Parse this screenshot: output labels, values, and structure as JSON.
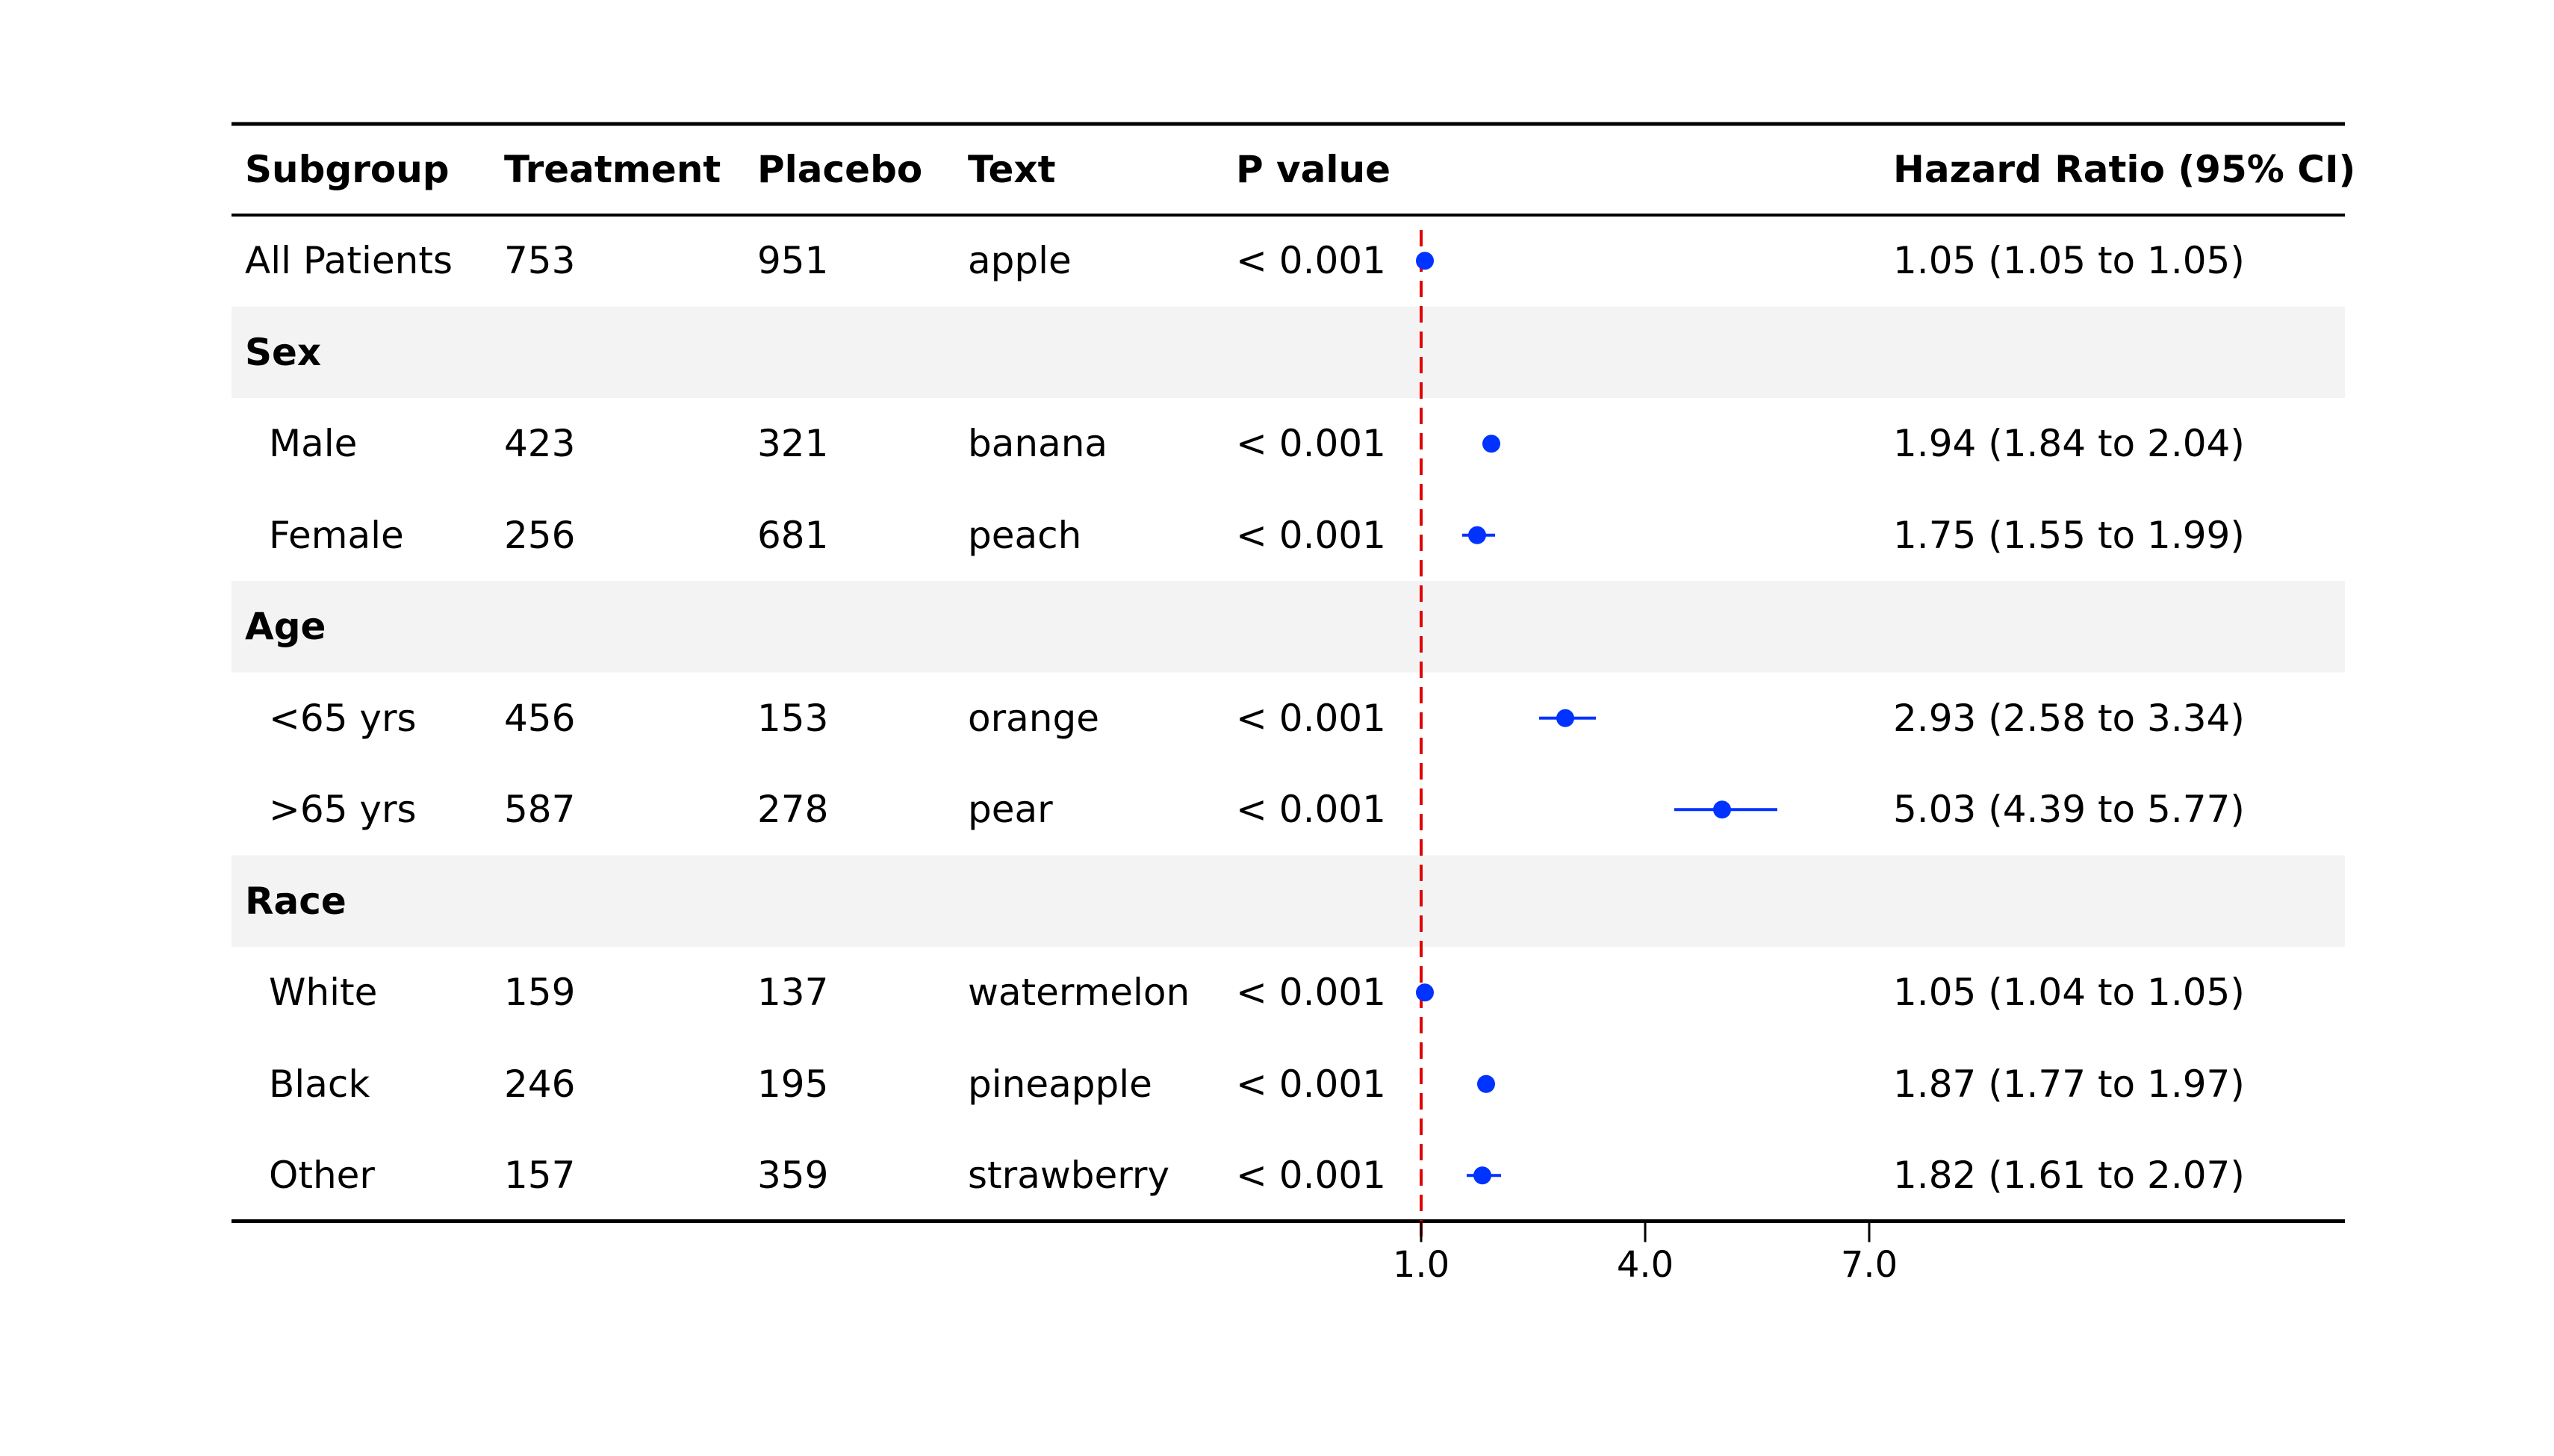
{
  "colors": {
    "point": "#0033ff",
    "reference_line": "#e00000",
    "band": "#f3f3f3",
    "rule": "#000000"
  },
  "chart_data": {
    "type": "forest",
    "columns": [
      "Subgroup",
      "Treatment",
      "Placebo",
      "Text",
      "P value",
      "Hazard Ratio (95% CI)"
    ],
    "reference_value": 1.0,
    "xlim": [
      1.0,
      8.0
    ],
    "xticks": [
      "1.0",
      "4.0",
      "7.0"
    ],
    "grid": false,
    "rows": [
      {
        "label": "All Patients",
        "kind": "overall",
        "treatment": "753",
        "placebo": "951",
        "text": "apple",
        "p": "< 0.001",
        "hr": 1.05,
        "lo": 1.05,
        "hi": 1.05,
        "hr_text": "1.05 (1.05 to 1.05)"
      },
      {
        "label": "Sex",
        "kind": "group"
      },
      {
        "label": "Male",
        "kind": "sub",
        "treatment": "423",
        "placebo": "321",
        "text": "banana",
        "p": "< 0.001",
        "hr": 1.94,
        "lo": 1.84,
        "hi": 2.04,
        "hr_text": "1.94 (1.84 to 2.04)"
      },
      {
        "label": "Female",
        "kind": "sub",
        "treatment": "256",
        "placebo": "681",
        "text": "peach",
        "p": "< 0.001",
        "hr": 1.75,
        "lo": 1.55,
        "hi": 1.99,
        "hr_text": "1.75 (1.55 to 1.99)"
      },
      {
        "label": "Age",
        "kind": "group"
      },
      {
        "label": "<65 yrs",
        "kind": "sub",
        "treatment": "456",
        "placebo": "153",
        "text": "orange",
        "p": "< 0.001",
        "hr": 2.93,
        "lo": 2.58,
        "hi": 3.34,
        "hr_text": "2.93 (2.58 to 3.34)"
      },
      {
        "label": ">65 yrs",
        "kind": "sub",
        "treatment": "587",
        "placebo": "278",
        "text": "pear",
        "p": "< 0.001",
        "hr": 5.03,
        "lo": 4.39,
        "hi": 5.77,
        "hr_text": "5.03 (4.39 to 5.77)"
      },
      {
        "label": "Race",
        "kind": "group"
      },
      {
        "label": "White",
        "kind": "sub",
        "treatment": "159",
        "placebo": "137",
        "text": "watermelon",
        "p": "< 0.001",
        "hr": 1.05,
        "lo": 1.04,
        "hi": 1.05,
        "hr_text": "1.05 (1.04 to 1.05)"
      },
      {
        "label": "Black",
        "kind": "sub",
        "treatment": "246",
        "placebo": "195",
        "text": "pineapple",
        "p": "< 0.001",
        "hr": 1.87,
        "lo": 1.77,
        "hi": 1.97,
        "hr_text": "1.87 (1.77 to 1.97)"
      },
      {
        "label": "Other",
        "kind": "sub",
        "treatment": "157",
        "placebo": "359",
        "text": "strawberry",
        "p": "< 0.001",
        "hr": 1.82,
        "lo": 1.61,
        "hi": 2.07,
        "hr_text": "1.82 (1.61 to 2.07)"
      }
    ]
  }
}
